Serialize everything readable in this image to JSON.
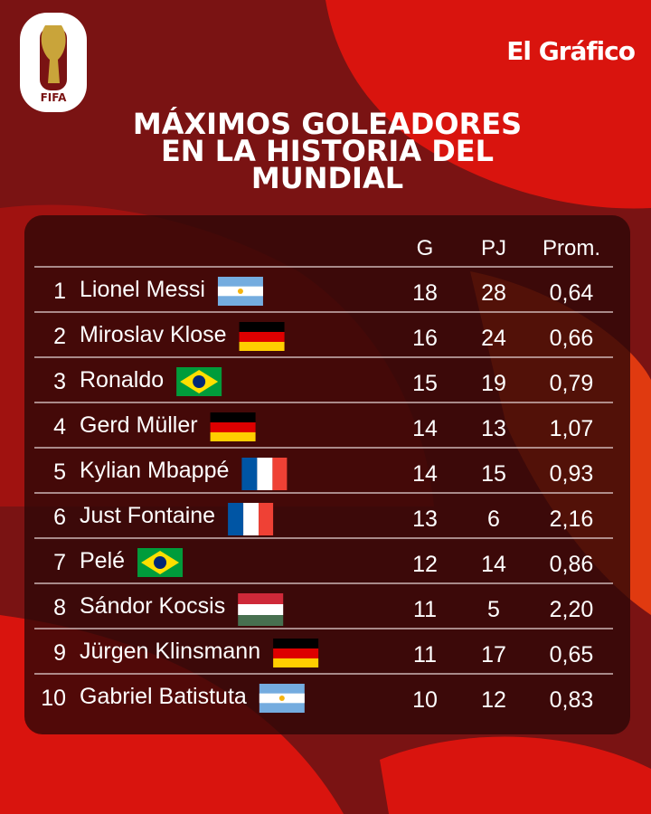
{
  "logo": {
    "text": "FIFA"
  },
  "brand": "El Gráfico",
  "title": {
    "lines": [
      "MÁXIMOS GOLEADORES",
      "EN LA HISTORIA DEL",
      "MUNDIAL"
    ]
  },
  "table": {
    "header": [
      "G",
      "PJ",
      "Prom."
    ],
    "rows": [
      [
        "1",
        "Lionel Messi",
        "18",
        "28",
        "0,64"
      ],
      [
        "2",
        "Miroslav Klose",
        "16",
        "24",
        "0,66"
      ],
      [
        "3",
        "Ronaldo",
        "15",
        "19",
        "0,79"
      ],
      [
        "4",
        "Gerd Müller",
        "14",
        "13",
        "1,07"
      ],
      [
        "5",
        "Kylian Mbappé",
        "14",
        "15",
        "0,93"
      ],
      [
        "6",
        "Just Fontaine",
        "13",
        "6",
        "2,16"
      ],
      [
        "7",
        "Pelé",
        "12",
        "14",
        "0,86"
      ],
      [
        "8",
        "Sándor Kocsis",
        "11",
        "5",
        "2,20"
      ],
      [
        "9",
        "Jürgen Klinsmann",
        "11",
        "17",
        "0,65"
      ],
      [
        "10",
        "Gabriel Batistuta",
        "10",
        "12",
        "0,83"
      ]
    ]
  }
}
